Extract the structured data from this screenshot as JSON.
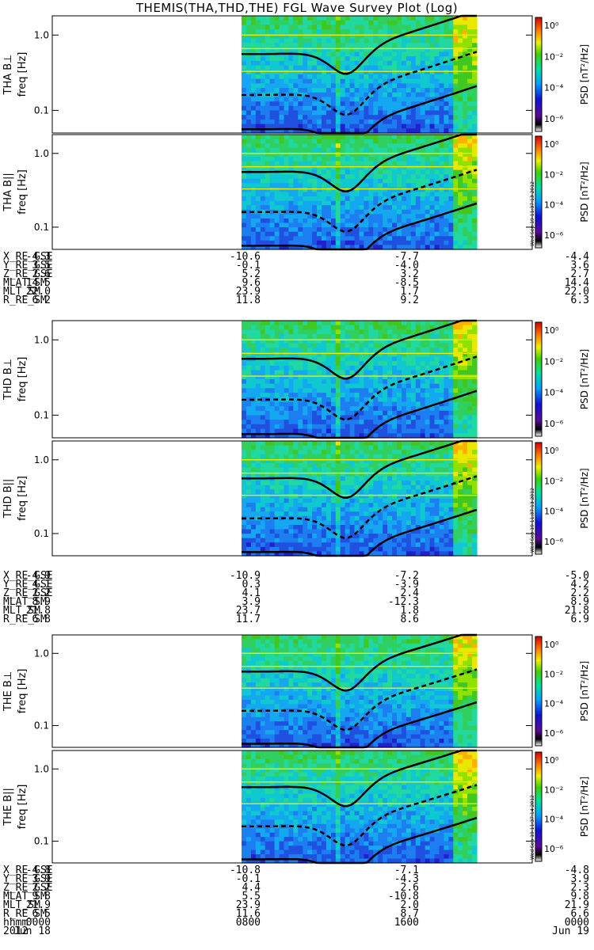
{
  "title": "THEMIS(THA,THD,THE) FGL Wave Survey Plot (Log)",
  "colorbar": {
    "label": "PSD [nT²/Hz]",
    "ticks": [
      "10⁰",
      "10⁻²",
      "10⁻⁴",
      "10⁻⁶"
    ],
    "stamps": [
      "Wed Sep 19 11:37:13 2012",
      "Wed Sep 19 11:37:13 2012",
      "Wed Sep 19 11:37:14 2012"
    ]
  },
  "chart_data": [
    {
      "type": "heatmap",
      "panel": "THA B⊥",
      "ylabel": "freq [Hz]",
      "yscale": "log",
      "yticks": [
        "1.0",
        "0.1"
      ],
      "ylim": [
        0.05,
        1.8
      ]
    },
    {
      "type": "heatmap",
      "panel": "THA B||",
      "ylabel": "freq [Hz]",
      "yscale": "log",
      "yticks": [
        "1.0",
        "0.1"
      ],
      "ylim": [
        0.05,
        1.8
      ]
    },
    {
      "type": "heatmap",
      "panel": "THD B⊥",
      "ylabel": "freq [Hz]",
      "yscale": "log",
      "yticks": [
        "1.0",
        "0.1"
      ],
      "ylim": [
        0.05,
        1.8
      ]
    },
    {
      "type": "heatmap",
      "panel": "THD B||",
      "ylabel": "freq [Hz]",
      "yscale": "log",
      "yticks": [
        "1.0",
        "0.1"
      ],
      "ylim": [
        0.05,
        1.8
      ]
    },
    {
      "type": "heatmap",
      "panel": "THE B⊥",
      "ylabel": "freq [Hz]",
      "yscale": "log",
      "yticks": [
        "1.0",
        "0.1"
      ],
      "ylim": [
        0.05,
        1.8
      ]
    },
    {
      "type": "heatmap",
      "panel": "THE B||",
      "ylabel": "freq [Hz]",
      "yscale": "log",
      "yticks": [
        "1.0",
        "0.1"
      ],
      "ylim": [
        0.05,
        1.8
      ]
    }
  ],
  "tables": [
    {
      "rows": [
        {
          "label": "X_RE_GSE",
          "values": [
            "-4.3",
            "-10.6",
            "-7.7",
            "-4.4"
          ]
        },
        {
          "label": "Y_RE_GSE",
          "values": [
            "3.5",
            "-0.1",
            "-4.0",
            "3.6"
          ]
        },
        {
          "label": "Z_RE_GSE",
          "values": [
            "2.6",
            "5.2",
            "3.2",
            "2.7"
          ]
        },
        {
          "label": "MLAT_SM",
          "values": [
            "14.5",
            "9.6",
            "-8.5",
            "14.4"
          ]
        },
        {
          "label": "MLT_SM",
          "values": [
            "22.0",
            "23.9",
            "1.7",
            "22.0"
          ]
        },
        {
          "label": "R_RE_SM",
          "values": [
            "6.2",
            "11.8",
            "9.2",
            "6.3"
          ]
        }
      ]
    },
    {
      "rows": [
        {
          "label": "X_RE_GSE",
          "values": [
            "-4.9",
            "-10.9",
            "-7.2",
            "-5.0"
          ]
        },
        {
          "label": "Y_RE_GSE",
          "values": [
            "4.1",
            "0.3",
            "-3.9",
            "4.2"
          ]
        },
        {
          "label": "Z_RE_GSE",
          "values": [
            "2.2",
            "4.1",
            "2.4",
            "2.2"
          ]
        },
        {
          "label": "MLAT_SM",
          "values": [
            "8.9",
            "3.9",
            "-12.3",
            "8.9"
          ]
        },
        {
          "label": "MLT_SM",
          "values": [
            "21.8",
            "23.7",
            "1.8",
            "21.8"
          ]
        },
        {
          "label": "R_RE_SM",
          "values": [
            "6.8",
            "11.7",
            "8.6",
            "6.9"
          ]
        }
      ]
    },
    {
      "rows": [
        {
          "label": "X_RE_GSE",
          "values": [
            "-4.8",
            "-10.8",
            "-7.1",
            "-4.8"
          ]
        },
        {
          "label": "Y_RE_GSE",
          "values": [
            "3.9",
            "-0.1",
            "-4.3",
            "3.9"
          ]
        },
        {
          "label": "Z_RE_GSE",
          "values": [
            "2.2",
            "4.4",
            "2.6",
            "2.3"
          ]
        },
        {
          "label": "MLAT_SM",
          "values": [
            "9.8",
            "5.5",
            "-10.8",
            "9.8"
          ]
        },
        {
          "label": "MLT_SM",
          "values": [
            "21.9",
            "23.9",
            "2.0",
            "21.9"
          ]
        },
        {
          "label": "R_RE_SM",
          "values": [
            "6.5",
            "11.6",
            "8.7",
            "6.6"
          ]
        },
        {
          "label": "hhmm",
          "values": [
            "0000",
            "0800",
            "1600",
            "0000"
          ]
        },
        {
          "label": "2012",
          "values": [
            "Jun 18",
            "",
            "",
            "Jun 19"
          ]
        }
      ]
    }
  ]
}
